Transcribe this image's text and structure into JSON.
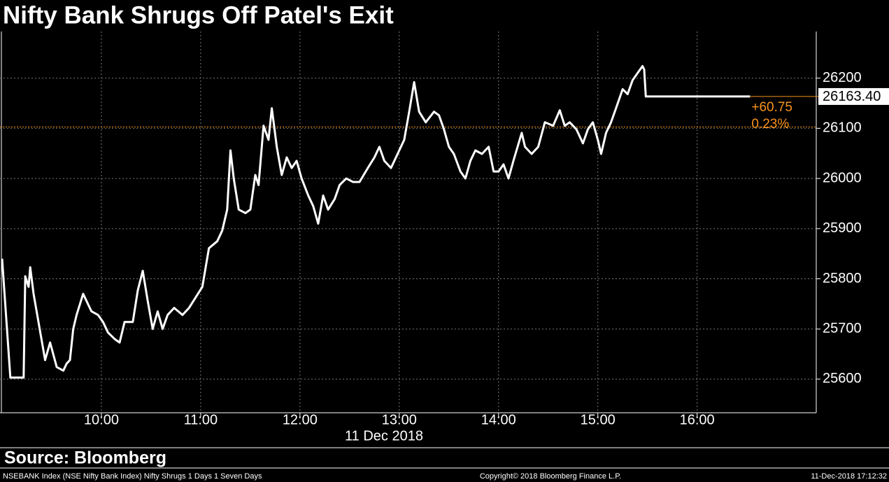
{
  "chart_data": {
    "type": "line",
    "title": "Nifty Bank Shrugs Off Patel's Exit",
    "x_label": "11 Dec 2018",
    "source": "Source: Bloomberg",
    "footer_left": "NSEBANK Index (NSE Nifty Bank Index) Nifty Shrugs 1 Days 1 Seven Days",
    "footer_center": "Copyright© 2018 Bloomberg Finance L.P.",
    "footer_right": "11-Dec-2018 17:12:32",
    "xlim": [
      "09:00",
      "17:12"
    ],
    "xticks": [
      "10:00",
      "11:00",
      "12:00",
      "13:00",
      "14:00",
      "15:00",
      "16:00"
    ],
    "ylim": [
      25533,
      26293
    ],
    "yticks": [
      25600,
      25700,
      25800,
      25900,
      26000,
      26100,
      26200
    ],
    "grid": true,
    "x": [
      "09:00",
      "09:05",
      "09:13",
      "09:14",
      "09:16",
      "09:17",
      "09:19",
      "09:22",
      "09:26",
      "09:29",
      "09:33",
      "09:37",
      "09:39",
      "09:41",
      "09:43",
      "09:45",
      "09:49",
      "09:52",
      "09:54",
      "09:58",
      "10:01",
      "10:04",
      "10:08",
      "10:11",
      "10:14",
      "10:19",
      "10:22",
      "10:25",
      "10:28",
      "10:31",
      "10:34",
      "10:37",
      "10:40",
      "10:44",
      "10:49",
      "10:53",
      "10:57",
      "11:01",
      "11:05",
      "11:10",
      "11:13",
      "11:16",
      "11:18",
      "11:20",
      "11:23",
      "11:27",
      "11:30",
      "11:33",
      "11:35",
      "11:38",
      "11:41",
      "11:43",
      "11:46",
      "11:49",
      "11:52",
      "11:55",
      "11:58",
      "12:01",
      "12:05",
      "12:08",
      "12:11",
      "12:14",
      "12:17",
      "12:21",
      "12:24",
      "12:28",
      "12:32",
      "12:36",
      "12:41",
      "12:45",
      "12:48",
      "12:51",
      "12:55",
      "13:00",
      "13:03",
      "13:06",
      "13:09",
      "13:12",
      "13:16",
      "13:21",
      "13:24",
      "13:27",
      "13:30",
      "13:33",
      "13:37",
      "13:40",
      "13:43",
      "13:46",
      "13:50",
      "13:54",
      "13:57",
      "14:00",
      "14:03",
      "14:06",
      "14:09",
      "14:14",
      "14:16",
      "14:20",
      "14:24",
      "14:28",
      "14:33",
      "14:37",
      "14:40",
      "14:43",
      "14:47",
      "14:51",
      "14:54",
      "14:57",
      "15:00",
      "15:02",
      "15:05",
      "15:08",
      "15:11",
      "15:15",
      "15:18",
      "15:21",
      "15:24",
      "15:27",
      "15:28",
      "15:29",
      "16:32"
    ],
    "series": [
      {
        "name": "NSEBANK Index",
        "color": "#ffffff",
        "values": [
          25840,
          25603,
          25603,
          25805,
          25784,
          25823,
          25770,
          25714,
          25638,
          25673,
          25624,
          25617,
          25631,
          25638,
          25700,
          25728,
          25770,
          25749,
          25735,
          25728,
          25714,
          25693,
          25680,
          25673,
          25714,
          25714,
          25777,
          25816,
          25756,
          25700,
          25735,
          25700,
          25728,
          25742,
          25728,
          25742,
          25763,
          25784,
          25861,
          25875,
          25896,
          25938,
          26056,
          26000,
          25938,
          25931,
          25938,
          26007,
          25987,
          26105,
          26077,
          26140,
          26063,
          26007,
          26042,
          26021,
          26035,
          26000,
          25966,
          25945,
          25910,
          25966,
          25938,
          25959,
          25987,
          26000,
          25993,
          25993,
          26021,
          26042,
          26063,
          26035,
          26021,
          26056,
          26077,
          26133,
          26192,
          26133,
          26112,
          26133,
          26126,
          26098,
          26063,
          26049,
          26014,
          26000,
          26035,
          26056,
          26049,
          26063,
          26014,
          26014,
          26028,
          26000,
          26035,
          26091,
          26063,
          26049,
          26063,
          26112,
          26105,
          26136,
          26105,
          26112,
          26098,
          26070,
          26098,
          26112,
          26077,
          26049,
          26091,
          26112,
          26140,
          26178,
          26168,
          26196,
          26210,
          26224,
          26217,
          26163.4,
          26163.4
        ]
      }
    ],
    "last_value_label": "26163.40",
    "previous_close": 26102.65,
    "previous_close_color": "#f7931e",
    "change_label": "+60.75",
    "change_pct_label": "0.23%"
  }
}
